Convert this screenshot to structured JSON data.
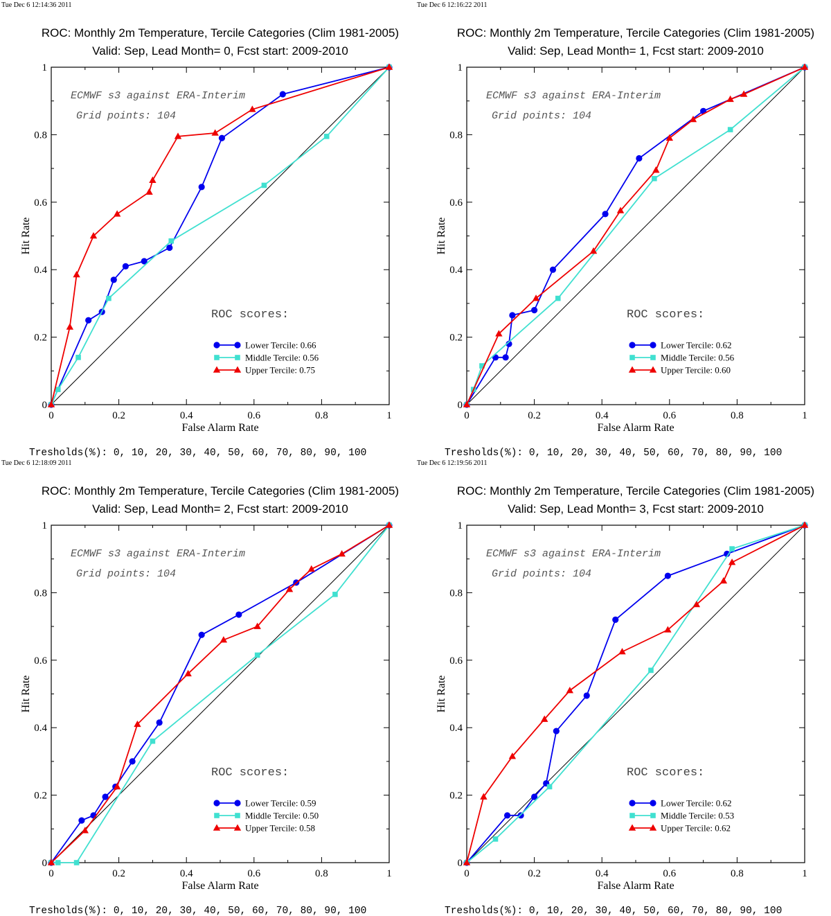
{
  "marker_map": {
    "Lower Tercile": "circle",
    "Middle Tercile": "square",
    "Upper Tercile": "triangle"
  },
  "colors": {
    "Lower Tercile": "#0000ee",
    "Middle Tercile": "#40e0d0",
    "Upper Tercile": "#ee0000",
    "diagonal": "#000000"
  },
  "chart_data": [
    {
      "type": "line",
      "timestamp": "Tue Dec  6 12:14:36 2011",
      "title": "ROC: Monthly 2m Temperature, Tercile Categories (Clim 1981-2005)",
      "subtitle": "Valid: Sep, Lead Month= 0, Fcst start: 2009-2010",
      "xlabel": "False Alarm Rate",
      "ylabel": "Hit Rate",
      "xlim": [
        0,
        1
      ],
      "ylim": [
        0,
        1
      ],
      "x_ticks": [
        "0",
        "0.2",
        "0.4",
        "0.6",
        "0.8",
        "1"
      ],
      "y_ticks": [
        "0",
        "0.2",
        "0.4",
        "0.6",
        "0.8",
        "1"
      ],
      "annotations": [
        "ECMWF s3 against ERA-Interim",
        "Grid points:  104"
      ],
      "legend_title": "ROC scores:",
      "footer": "Tresholds(%): 0, 10, 20, 30, 40, 50, 60, 70, 80, 90, 100",
      "series": [
        {
          "name": "Lower Tercile",
          "score_label": "Lower Tercile: 0.66",
          "points": [
            [
              0,
              0
            ],
            [
              0.11,
              0.25
            ],
            [
              0.15,
              0.275
            ],
            [
              0.185,
              0.37
            ],
            [
              0.22,
              0.41
            ],
            [
              0.275,
              0.425
            ],
            [
              0.35,
              0.465
            ],
            [
              0.445,
              0.645
            ],
            [
              0.505,
              0.79
            ],
            [
              0.685,
              0.92
            ],
            [
              1,
              1
            ]
          ]
        },
        {
          "name": "Middle Tercile",
          "score_label": "Middle Tercile: 0.56",
          "points": [
            [
              0,
              0
            ],
            [
              0.02,
              0.045
            ],
            [
              0.08,
              0.14
            ],
            [
              0.17,
              0.315
            ],
            [
              0.355,
              0.485
            ],
            [
              0.63,
              0.65
            ],
            [
              0.815,
              0.795
            ],
            [
              1,
              1
            ]
          ]
        },
        {
          "name": "Upper Tercile",
          "score_label": "Upper Tercile: 0.75",
          "points": [
            [
              0,
              0
            ],
            [
              0.055,
              0.23
            ],
            [
              0.075,
              0.385
            ],
            [
              0.125,
              0.5
            ],
            [
              0.195,
              0.565
            ],
            [
              0.29,
              0.63
            ],
            [
              0.3,
              0.665
            ],
            [
              0.375,
              0.795
            ],
            [
              0.485,
              0.805
            ],
            [
              0.595,
              0.875
            ],
            [
              1,
              1
            ]
          ]
        }
      ]
    },
    {
      "type": "line",
      "timestamp": "Tue Dec  6 12:16:22 2011",
      "title": "ROC: Monthly 2m Temperature, Tercile Categories (Clim 1981-2005)",
      "subtitle": "Valid: Sep, Lead Month= 1, Fcst start: 2009-2010",
      "xlabel": "False Alarm Rate",
      "ylabel": "Hit Rate",
      "xlim": [
        0,
        1
      ],
      "ylim": [
        0,
        1
      ],
      "x_ticks": [
        "0",
        "0.2",
        "0.4",
        "0.6",
        "0.8",
        "1"
      ],
      "y_ticks": [
        "0",
        "0.2",
        "0.4",
        "0.6",
        "0.8",
        "1"
      ],
      "annotations": [
        "ECMWF s3 against ERA-Interim",
        "Grid points:  104"
      ],
      "legend_title": "ROC scores:",
      "footer": "Tresholds(%): 0, 10, 20, 30, 40, 50, 60, 70, 80, 90, 100",
      "series": [
        {
          "name": "Lower Tercile",
          "score_label": "Lower Tercile: 0.62",
          "points": [
            [
              0,
              0
            ],
            [
              0.085,
              0.14
            ],
            [
              0.115,
              0.14
            ],
            [
              0.125,
              0.18
            ],
            [
              0.135,
              0.265
            ],
            [
              0.2,
              0.28
            ],
            [
              0.255,
              0.4
            ],
            [
              0.41,
              0.565
            ],
            [
              0.51,
              0.73
            ],
            [
              0.7,
              0.87
            ],
            [
              1,
              1
            ]
          ]
        },
        {
          "name": "Middle Tercile",
          "score_label": "Middle Tercile: 0.56",
          "points": [
            [
              0,
              0
            ],
            [
              0.02,
              0.045
            ],
            [
              0.045,
              0.115
            ],
            [
              0.27,
              0.315
            ],
            [
              0.555,
              0.67
            ],
            [
              0.78,
              0.815
            ],
            [
              1,
              1
            ]
          ]
        },
        {
          "name": "Upper Tercile",
          "score_label": "Upper Tercile: 0.60",
          "points": [
            [
              0,
              0
            ],
            [
              0.095,
              0.21
            ],
            [
              0.205,
              0.315
            ],
            [
              0.375,
              0.455
            ],
            [
              0.455,
              0.575
            ],
            [
              0.56,
              0.695
            ],
            [
              0.6,
              0.79
            ],
            [
              0.67,
              0.845
            ],
            [
              0.78,
              0.905
            ],
            [
              0.82,
              0.92
            ],
            [
              1,
              1
            ]
          ]
        }
      ]
    },
    {
      "type": "line",
      "timestamp": "Tue Dec  6 12:18:09 2011",
      "title": "ROC: Monthly 2m Temperature, Tercile Categories (Clim 1981-2005)",
      "subtitle": "Valid: Sep, Lead Month= 2, Fcst start: 2009-2010",
      "xlabel": "False Alarm Rate",
      "ylabel": "Hit Rate",
      "xlim": [
        0,
        1
      ],
      "ylim": [
        0,
        1
      ],
      "x_ticks": [
        "0",
        "0.2",
        "0.4",
        "0.6",
        "0.8",
        "1"
      ],
      "y_ticks": [
        "0",
        "0.2",
        "0.4",
        "0.6",
        "0.8",
        "1"
      ],
      "annotations": [
        "ECMWF s3 against ERA-Interim",
        "Grid points:  104"
      ],
      "legend_title": "ROC scores:",
      "footer": "Tresholds(%): 0, 10, 20, 30, 40, 50, 60, 70, 80, 90, 100",
      "series": [
        {
          "name": "Lower Tercile",
          "score_label": "Lower Tercile: 0.59",
          "points": [
            [
              0,
              0
            ],
            [
              0.09,
              0.125
            ],
            [
              0.125,
              0.14
            ],
            [
              0.16,
              0.195
            ],
            [
              0.19,
              0.225
            ],
            [
              0.24,
              0.3
            ],
            [
              0.32,
              0.415
            ],
            [
              0.445,
              0.675
            ],
            [
              0.555,
              0.735
            ],
            [
              0.725,
              0.83
            ],
            [
              1,
              1
            ]
          ]
        },
        {
          "name": "Middle Tercile",
          "score_label": "Middle Tercile: 0.50",
          "points": [
            [
              0,
              0
            ],
            [
              0.02,
              0
            ],
            [
              0.075,
              0
            ],
            [
              0.3,
              0.36
            ],
            [
              0.61,
              0.615
            ],
            [
              0.84,
              0.795
            ],
            [
              1,
              1
            ]
          ]
        },
        {
          "name": "Upper Tercile",
          "score_label": "Upper Tercile: 0.58",
          "points": [
            [
              0,
              0
            ],
            [
              0.1,
              0.095
            ],
            [
              0.195,
              0.225
            ],
            [
              0.255,
              0.41
            ],
            [
              0.405,
              0.56
            ],
            [
              0.51,
              0.66
            ],
            [
              0.61,
              0.7
            ],
            [
              0.705,
              0.81
            ],
            [
              0.77,
              0.87
            ],
            [
              0.86,
              0.915
            ],
            [
              1,
              1
            ]
          ]
        }
      ]
    },
    {
      "type": "line",
      "timestamp": "Tue Dec  6 12:19:56 2011",
      "title": "ROC: Monthly 2m Temperature, Tercile Categories (Clim 1981-2005)",
      "subtitle": "Valid: Sep, Lead Month= 3, Fcst start: 2009-2010",
      "xlabel": "False Alarm Rate",
      "ylabel": "Hit Rate",
      "xlim": [
        0,
        1
      ],
      "ylim": [
        0,
        1
      ],
      "x_ticks": [
        "0",
        "0.2",
        "0.4",
        "0.6",
        "0.8",
        "1"
      ],
      "y_ticks": [
        "0",
        "0.2",
        "0.4",
        "0.6",
        "0.8",
        "1"
      ],
      "annotations": [
        "ECMWF s3 against ERA-Interim",
        "Grid points:  104"
      ],
      "legend_title": "ROC scores:",
      "footer": "Tresholds(%): 0, 10, 20, 30, 40, 50, 60, 70, 80, 90, 100",
      "series": [
        {
          "name": "Lower Tercile",
          "score_label": "Lower Tercile: 0.62",
          "points": [
            [
              0,
              0
            ],
            [
              0.12,
              0.14
            ],
            [
              0.16,
              0.14
            ],
            [
              0.2,
              0.195
            ],
            [
              0.235,
              0.235
            ],
            [
              0.265,
              0.39
            ],
            [
              0.355,
              0.495
            ],
            [
              0.44,
              0.72
            ],
            [
              0.595,
              0.85
            ],
            [
              0.77,
              0.915
            ],
            [
              1,
              1
            ]
          ]
        },
        {
          "name": "Middle Tercile",
          "score_label": "Middle Tercile: 0.53",
          "points": [
            [
              0,
              0
            ],
            [
              0.085,
              0.07
            ],
            [
              0.245,
              0.225
            ],
            [
              0.545,
              0.57
            ],
            [
              0.785,
              0.93
            ],
            [
              1,
              1
            ]
          ]
        },
        {
          "name": "Upper Tercile",
          "score_label": "Upper Tercile: 0.62",
          "points": [
            [
              0,
              0
            ],
            [
              0.05,
              0.195
            ],
            [
              0.135,
              0.315
            ],
            [
              0.23,
              0.425
            ],
            [
              0.305,
              0.51
            ],
            [
              0.46,
              0.625
            ],
            [
              0.595,
              0.69
            ],
            [
              0.68,
              0.765
            ],
            [
              0.76,
              0.835
            ],
            [
              0.785,
              0.89
            ],
            [
              1,
              1
            ]
          ]
        }
      ]
    }
  ]
}
